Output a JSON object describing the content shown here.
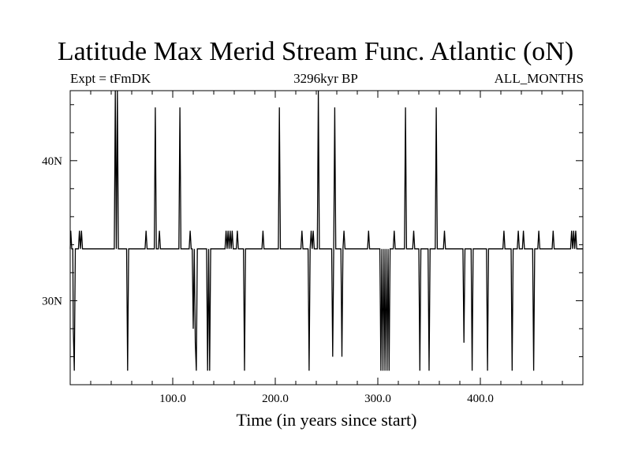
{
  "chart_data": {
    "type": "line",
    "title": "Latitude Max Merid Stream Func. Atlantic (oN)",
    "subtitle_left": "Expt = tFmDK",
    "subtitle_center": "3296kyr BP",
    "subtitle_right": "ALL_MONTHS",
    "xlabel": "Time (in years since start)",
    "ylabel": "",
    "xlim": [
      0,
      500
    ],
    "ylim": [
      24,
      45
    ],
    "xticks": [
      100,
      200,
      300,
      400
    ],
    "xtick_labels": [
      "100.0",
      "200.0",
      "300.0",
      "400.0"
    ],
    "yticks": [
      30,
      40
    ],
    "ytick_labels": [
      "30N",
      "40N"
    ],
    "baseline": 33.7,
    "series": [
      {
        "color": "#000000",
        "points": [
          [
            0,
            33.7
          ],
          [
            0.5,
            35.0
          ],
          [
            1.5,
            33.7
          ],
          [
            2.5,
            33.7
          ],
          [
            3,
            28.0
          ],
          [
            4,
            25.0
          ],
          [
            5,
            33.7
          ],
          [
            8,
            33.7
          ],
          [
            9,
            35.0
          ],
          [
            10,
            33.7
          ],
          [
            11,
            35.0
          ],
          [
            12,
            33.7
          ],
          [
            43,
            33.7
          ],
          [
            44,
            45.0
          ],
          [
            45,
            33.7
          ],
          [
            46,
            45.0
          ],
          [
            47,
            33.7
          ],
          [
            55,
            33.7
          ],
          [
            56,
            25.0
          ],
          [
            57,
            33.7
          ],
          [
            73,
            33.7
          ],
          [
            74,
            35.0
          ],
          [
            75,
            33.7
          ],
          [
            82,
            33.7
          ],
          [
            83,
            43.8
          ],
          [
            84,
            33.7
          ],
          [
            86,
            33.7
          ],
          [
            87,
            35.0
          ],
          [
            88,
            33.7
          ],
          [
            106,
            33.7
          ],
          [
            107,
            43.8
          ],
          [
            108,
            33.7
          ],
          [
            116,
            33.7
          ],
          [
            117,
            35.0
          ],
          [
            118,
            33.7
          ],
          [
            119,
            33.7
          ],
          [
            120,
            28.0
          ],
          [
            121,
            33.7
          ],
          [
            122,
            27.0
          ],
          [
            123,
            25.0
          ],
          [
            124,
            33.7
          ],
          [
            133,
            33.7
          ],
          [
            134,
            25.0
          ],
          [
            135,
            33.7
          ],
          [
            136,
            25.0
          ],
          [
            137,
            33.7
          ],
          [
            151,
            33.7
          ],
          [
            152,
            35.0
          ],
          [
            153,
            33.7
          ],
          [
            154,
            35.0
          ],
          [
            155,
            33.7
          ],
          [
            156,
            35.0
          ],
          [
            157,
            33.7
          ],
          [
            158,
            35.0
          ],
          [
            159,
            33.7
          ],
          [
            162,
            33.7
          ],
          [
            163,
            35.0
          ],
          [
            164,
            33.7
          ],
          [
            169,
            33.7
          ],
          [
            170,
            25.0
          ],
          [
            171,
            33.7
          ],
          [
            187,
            33.7
          ],
          [
            188,
            35.0
          ],
          [
            189,
            33.7
          ],
          [
            203,
            33.7
          ],
          [
            204,
            43.8
          ],
          [
            205,
            33.7
          ],
          [
            225,
            33.7
          ],
          [
            226,
            35.0
          ],
          [
            227,
            33.7
          ],
          [
            232,
            33.7
          ],
          [
            233,
            25.0
          ],
          [
            234,
            33.7
          ],
          [
            235,
            35.0
          ],
          [
            236,
            33.7
          ],
          [
            237,
            35.0
          ],
          [
            238,
            33.7
          ],
          [
            241,
            33.7
          ],
          [
            242,
            45.0
          ],
          [
            243,
            33.7
          ],
          [
            255,
            33.7
          ],
          [
            256,
            26.0
          ],
          [
            257,
            33.7
          ],
          [
            258,
            43.8
          ],
          [
            259,
            33.7
          ],
          [
            264,
            33.7
          ],
          [
            265,
            26.0
          ],
          [
            266,
            33.7
          ],
          [
            267,
            35.0
          ],
          [
            268,
            33.7
          ],
          [
            290,
            33.7
          ],
          [
            291,
            35.0
          ],
          [
            292,
            33.7
          ],
          [
            302,
            33.7
          ],
          [
            303,
            25.0
          ],
          [
            304,
            33.7
          ],
          [
            305,
            25.0
          ],
          [
            306,
            33.7
          ],
          [
            307,
            25.0
          ],
          [
            308,
            33.7
          ],
          [
            309,
            25.0
          ],
          [
            310,
            33.7
          ],
          [
            311,
            25.0
          ],
          [
            312,
            33.7
          ],
          [
            315,
            33.7
          ],
          [
            316,
            35.0
          ],
          [
            317,
            33.7
          ],
          [
            326,
            33.7
          ],
          [
            327,
            43.8
          ],
          [
            328,
            33.7
          ],
          [
            334,
            33.7
          ],
          [
            335,
            35.0
          ],
          [
            336,
            33.7
          ],
          [
            340,
            33.7
          ],
          [
            341,
            25.0
          ],
          [
            342,
            33.7
          ],
          [
            349,
            33.7
          ],
          [
            350,
            25.0
          ],
          [
            351,
            33.7
          ],
          [
            356,
            33.7
          ],
          [
            357,
            43.8
          ],
          [
            358,
            33.7
          ],
          [
            364,
            33.7
          ],
          [
            365,
            35.0
          ],
          [
            366,
            33.7
          ],
          [
            383,
            33.7
          ],
          [
            384,
            27.0
          ],
          [
            385,
            33.7
          ],
          [
            391,
            33.7
          ],
          [
            392,
            25.0
          ],
          [
            393,
            33.7
          ],
          [
            406,
            33.7
          ],
          [
            407,
            25.0
          ],
          [
            408,
            33.7
          ],
          [
            422,
            33.7
          ],
          [
            423,
            35.0
          ],
          [
            424,
            33.7
          ],
          [
            430,
            33.7
          ],
          [
            431,
            25.0
          ],
          [
            432,
            33.7
          ],
          [
            436,
            33.7
          ],
          [
            437,
            35.0
          ],
          [
            438,
            33.7
          ],
          [
            441,
            33.7
          ],
          [
            442,
            35.0
          ],
          [
            443,
            33.7
          ],
          [
            451,
            33.7
          ],
          [
            452,
            25.0
          ],
          [
            453,
            33.7
          ],
          [
            456,
            33.7
          ],
          [
            457,
            35.0
          ],
          [
            458,
            33.7
          ],
          [
            470,
            33.7
          ],
          [
            471,
            35.0
          ],
          [
            472,
            33.7
          ],
          [
            488,
            33.7
          ],
          [
            489,
            35.0
          ],
          [
            490,
            33.7
          ],
          [
            491,
            35.0
          ],
          [
            492,
            33.7
          ],
          [
            493,
            35.0
          ],
          [
            494,
            33.7
          ],
          [
            500,
            33.7
          ]
        ]
      }
    ],
    "grid": false,
    "legend": "none"
  }
}
